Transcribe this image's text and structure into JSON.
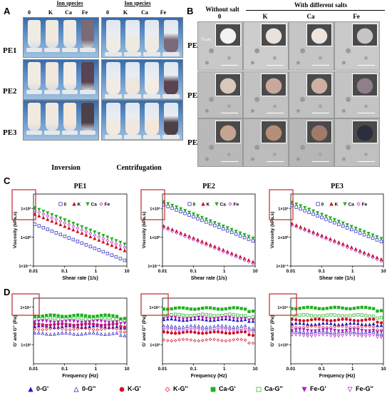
{
  "panel_letters": {
    "a": "A",
    "b": "B",
    "c": "C",
    "d": "D"
  },
  "panel_a": {
    "header_left": "Ion species",
    "header_right": "Ion species",
    "ions": [
      "0",
      "K",
      "Ca",
      "Fe"
    ],
    "rows": [
      "PE1",
      "PE2",
      "PE3"
    ],
    "caption_left": "Inversion",
    "caption_right": "Centrifugation"
  },
  "panel_b": {
    "header_without": "Without salt",
    "header_with": "With different salts",
    "cols": [
      "0",
      "K",
      "Ca",
      "Fe"
    ],
    "rows": [
      "PE1",
      "PE2",
      "PE3"
    ],
    "scale_text": "75 µm",
    "inset_scale_text": "1 cm"
  },
  "colors": {
    "zero": "#1f1fbf",
    "k": "#d01020",
    "ca": "#20b020",
    "fe": "#b020c0",
    "frame": "#c0282a"
  },
  "chart_data": [
    {
      "type": "scatter",
      "title": "PE1",
      "xlabel": "Shear rate (1/s)",
      "ylabel": "Viscosity (kPa.s)",
      "x_log": true,
      "y_log": true,
      "xlim": [
        0.01,
        10
      ],
      "ylim": [
        0.01,
        1000
      ],
      "x_ticks": [
        "0.01",
        "0.1",
        "1",
        "10"
      ],
      "y_ticks": [
        "1×10²",
        "1×10⁰",
        "1×10⁻²"
      ],
      "legend": [
        "0",
        "K",
        "Ca",
        "Fe"
      ],
      "series": [
        {
          "name": "0",
          "start": 8,
          "end": 0.025
        },
        {
          "name": "K",
          "start": 40,
          "end": 0.12
        },
        {
          "name": "Ca",
          "start": 110,
          "end": 0.33
        },
        {
          "name": "Fe",
          "start": 70,
          "end": 0.2
        }
      ]
    },
    {
      "type": "scatter",
      "title": "PE2",
      "xlabel": "Shear rate (1/s)",
      "ylabel": "Viscosity (kPa.s)",
      "x_log": true,
      "y_log": true,
      "xlim": [
        0.01,
        10
      ],
      "ylim": [
        0.01,
        1000
      ],
      "x_ticks": [
        "0.01",
        "0.1",
        "1",
        "10"
      ],
      "y_ticks": [
        "1×10²",
        "1×10⁰",
        "1×10⁻²"
      ],
      "legend": [
        "0",
        "K",
        "Ca",
        "Fe"
      ],
      "series": [
        {
          "name": "0",
          "start": 180,
          "end": 0.55
        },
        {
          "name": "K",
          "start": 6,
          "end": 0.02
        },
        {
          "name": "Ca",
          "start": 280,
          "end": 0.85
        },
        {
          "name": "Fe",
          "start": 4.5,
          "end": 0.015
        }
      ]
    },
    {
      "type": "scatter",
      "title": "PE3",
      "xlabel": "Shear rate (1/s)",
      "ylabel": "Viscosity (kPa.s)",
      "x_log": true,
      "y_log": true,
      "xlim": [
        0.01,
        10
      ],
      "ylim": [
        0.01,
        1000
      ],
      "x_ticks": [
        "0.01",
        "0.1",
        "1",
        "10"
      ],
      "y_ticks": [
        "1×10²",
        "1×10⁰",
        "1×10⁻²"
      ],
      "legend": [
        "0",
        "K",
        "Ca",
        "Fe"
      ],
      "series": [
        {
          "name": "0",
          "start": 160,
          "end": 0.5
        },
        {
          "name": "K",
          "start": 9,
          "end": 0.03
        },
        {
          "name": "Ca",
          "start": 260,
          "end": 0.8
        },
        {
          "name": "Fe",
          "start": 7,
          "end": 0.022
        }
      ]
    },
    {
      "type": "scatter",
      "title": "",
      "xlabel": "Frequency (Hz)",
      "ylabel": "G' and G'' (Pa)",
      "x_log": true,
      "y_log": true,
      "xlim": [
        0.01,
        10
      ],
      "ylim": [
        10,
        30000
      ],
      "x_ticks": [
        "0.01",
        "0.1",
        "1",
        "10"
      ],
      "y_ticks": [
        "1×10⁴",
        "1×10²"
      ],
      "series": [
        {
          "name": "0-G'",
          "values": 950
        },
        {
          "name": "0-G''",
          "values": 400
        },
        {
          "name": "K-G'",
          "values": 1200
        },
        {
          "name": "K-G''",
          "values": 700
        },
        {
          "name": "Ca-G'",
          "values": 3500
        },
        {
          "name": "Ca-G''",
          "values": 2500
        },
        {
          "name": "Fe-G'",
          "values": 1700
        },
        {
          "name": "Fe-G''",
          "values": 1100
        }
      ]
    },
    {
      "type": "scatter",
      "title": "",
      "xlabel": "Frequency (Hz)",
      "ylabel": "G' and G'' (Pa)",
      "x_log": true,
      "y_log": true,
      "xlim": [
        0.01,
        10
      ],
      "ylim": [
        10,
        30000
      ],
      "x_ticks": [
        "0.01",
        "0.1",
        "1",
        "10"
      ],
      "y_ticks": [
        "1×10⁴",
        "1×10²"
      ],
      "series": [
        {
          "name": "0-G'",
          "values": 2200
        },
        {
          "name": "0-G''",
          "values": 950
        },
        {
          "name": "K-G'",
          "values": 450
        },
        {
          "name": "K-G''",
          "values": 180
        },
        {
          "name": "Ca-G'",
          "values": 8500
        },
        {
          "name": "Ca-G''",
          "values": 3800
        },
        {
          "name": "Fe-G'",
          "values": 2600
        },
        {
          "name": "Fe-G''",
          "values": 600
        }
      ]
    },
    {
      "type": "scatter",
      "title": "",
      "xlabel": "Frequency (Hz)",
      "ylabel": "G' and G'' (Pa)",
      "x_log": true,
      "y_log": true,
      "xlim": [
        0.01,
        10
      ],
      "ylim": [
        10,
        30000
      ],
      "x_ticks": [
        "0.01",
        "0.1",
        "1",
        "10"
      ],
      "y_ticks": [
        "1×10⁴",
        "1×10²"
      ],
      "series": [
        {
          "name": "0-G'",
          "values": 1300
        },
        {
          "name": "0-G''",
          "values": 500
        },
        {
          "name": "K-G'",
          "values": 2100
        },
        {
          "name": "K-G''",
          "values": 900
        },
        {
          "name": "Ca-G'",
          "values": 9000
        },
        {
          "name": "Ca-G''",
          "values": 3600
        },
        {
          "name": "Fe-G'",
          "values": 600
        },
        {
          "name": "Fe-G''",
          "values": 320
        }
      ]
    }
  ],
  "legend_d": [
    "0-G'",
    "0-G''",
    "K-G'",
    "K-G''",
    "Ca-G'",
    "Ca-G''",
    "Fe-G'",
    "Fe-G''"
  ]
}
